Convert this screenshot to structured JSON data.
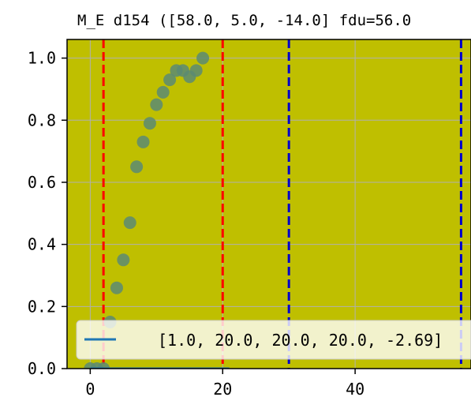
{
  "chart_data": {
    "type": "scatter",
    "title": "M_E d154 ([58.0, 5.0, -14.0] fdu=56.0",
    "xlabel": "",
    "ylabel": "",
    "xlim": [
      -3.5,
      57.5
    ],
    "ylim": [
      0.0,
      1.06
    ],
    "x_ticks": [
      0,
      20,
      40
    ],
    "x_tick_labels": [
      "0",
      "20",
      "40"
    ],
    "y_ticks": [
      0.0,
      0.2,
      0.4,
      0.6,
      0.8,
      1.0
    ],
    "y_tick_labels": [
      "0.0",
      "0.2",
      "0.4",
      "0.6",
      "0.8",
      "1.0"
    ],
    "grid": true,
    "background_color": "#bfbf00",
    "point_color": "#5b8a73",
    "line_color": "#1f77b4",
    "series": [
      {
        "type": "scatter",
        "x": [
          0,
          1,
          2,
          3,
          4,
          5,
          6,
          7,
          8,
          9,
          10,
          11,
          12,
          13,
          14,
          15,
          16,
          17
        ],
        "y": [
          0.0,
          0.0,
          0.0,
          0.15,
          0.26,
          0.35,
          0.47,
          0.65,
          0.73,
          0.79,
          0.85,
          0.89,
          0.93,
          0.96,
          0.96,
          0.94,
          0.96,
          1.0
        ]
      },
      {
        "type": "line",
        "x": [
          0,
          21
        ],
        "y": [
          0.0,
          0.0
        ]
      }
    ],
    "vlines": [
      {
        "x": 2,
        "color": "#ff0000",
        "style": "dashed"
      },
      {
        "x": 20,
        "color": "#ff0000",
        "style": "dashed"
      },
      {
        "x": 30,
        "color": "#0000cc",
        "style": "dashed"
      },
      {
        "x": 56,
        "color": "#0000cc",
        "style": "dashed"
      }
    ],
    "legend": {
      "placement": "lower-left",
      "entries": [
        {
          "label": "[1.0, 20.0, 20.0, 20.0, -2.69]",
          "color": "#1f77b4"
        }
      ]
    }
  }
}
